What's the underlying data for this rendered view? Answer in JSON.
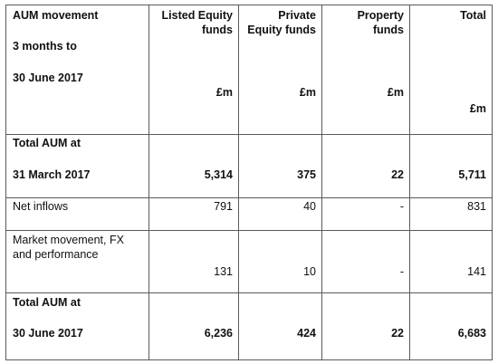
{
  "header": {
    "title_line1": "AUM movement",
    "title_line2": "3 months to",
    "title_line3": "30 June 2017",
    "col_listed_line1": "Listed Equity",
    "col_listed_line2": "funds",
    "col_private_line1": "Private",
    "col_private_line2": "Equity funds",
    "col_property_line1": "Property",
    "col_property_line2": "funds",
    "col_total": "Total",
    "unit": "£m"
  },
  "rows": [
    {
      "label_line1": "Total AUM at",
      "label_line2": "31 March 2017",
      "listed": "5,314",
      "private": "375",
      "property": "22",
      "total": "5,711"
    },
    {
      "label_line1": "Net inflows",
      "listed": "791",
      "private": "40",
      "property": "-",
      "total": "831"
    },
    {
      "label_line1": "Market movement, FX",
      "label_line2": "and performance",
      "listed": "131",
      "private": "10",
      "property": "-",
      "total": "141"
    },
    {
      "label_line1": "Total AUM at",
      "label_line2": "30 June 2017",
      "listed": "6,236",
      "private": "424",
      "property": "22",
      "total": "6,683"
    }
  ]
}
